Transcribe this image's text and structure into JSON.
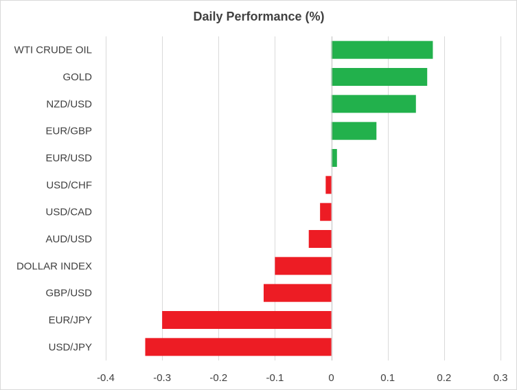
{
  "chart_data": {
    "type": "bar",
    "orientation": "horizontal",
    "title": "Daily Performance  (%)",
    "xlabel": "",
    "ylabel": "",
    "xlim": [
      -0.4,
      0.3
    ],
    "grid": true,
    "legend": "none",
    "x_ticks": [
      -0.4,
      -0.3,
      -0.2,
      -0.1,
      0,
      0.1,
      0.2,
      0.3
    ],
    "x_tick_labels": [
      "-0.4",
      "-0.3",
      "-0.2",
      "-0.1",
      "0",
      "0.1",
      "0.2",
      "0.3"
    ],
    "categories": [
      "WTI CRUDE OIL",
      "GOLD",
      "NZD/USD",
      "EUR/GBP",
      "EUR/USD",
      "USD/CHF",
      "USD/CAD",
      "AUD/USD",
      "DOLLAR INDEX",
      "GBP/USD",
      "EUR/JPY",
      "USD/JPY"
    ],
    "values": [
      0.18,
      0.17,
      0.15,
      0.08,
      0.01,
      -0.01,
      -0.02,
      -0.04,
      -0.1,
      -0.12,
      -0.3,
      -0.33
    ],
    "colors": {
      "positive": "#22b14c",
      "negative": "#ed1c24"
    }
  }
}
